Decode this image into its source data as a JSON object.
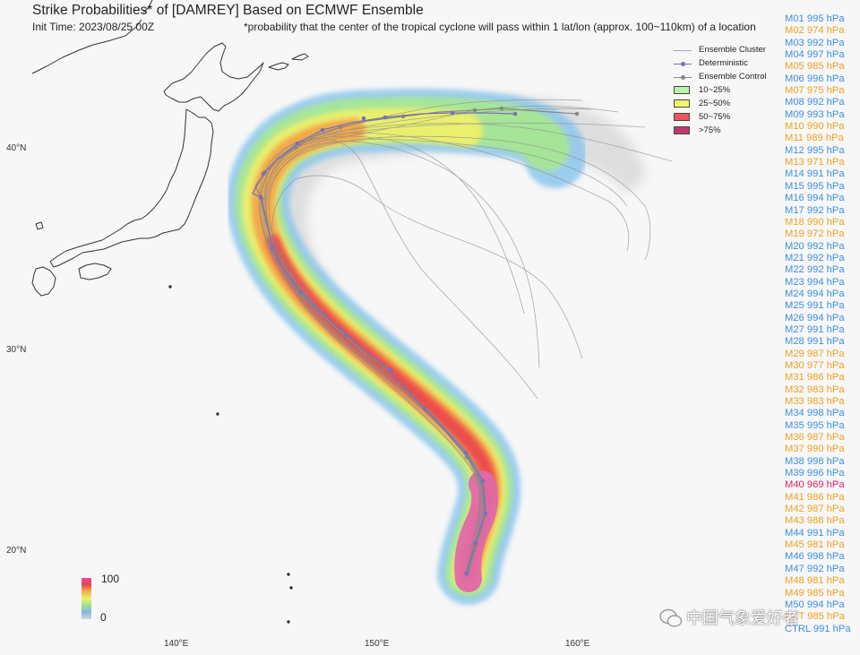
{
  "title": "Strike Probabilities* of [DAMREY] Based on ECMWF Ensemble",
  "init_time": "Init Time: 2023/08/25 00Z",
  "footnote": "*probability that the center of the tropical cyclone will pass within 1 lat/lon (approx. 100~110km) of a location",
  "lat_labels": [
    "40°N",
    "30°N",
    "20°N"
  ],
  "lon_labels": [
    "140°E",
    "150°E",
    "160°E"
  ],
  "legend": {
    "ensemble_cluster": "Ensemble Cluster",
    "deterministic": "Deterministic",
    "ensemble_control": "Ensemble Control",
    "bands": [
      {
        "label": "10~25%",
        "color": "#b9f4a8"
      },
      {
        "label": "25~50%",
        "color": "#f6f56a"
      },
      {
        "label": "50~75%",
        "color": "#f0555a"
      },
      {
        "label": ">75%",
        "color": "#c0396e"
      }
    ]
  },
  "colorbar": {
    "max": "100",
    "min": "0"
  },
  "members": [
    {
      "text": "M01 995 hPa",
      "color": "#3d8fe0"
    },
    {
      "text": "M02 974 hPa",
      "color": "#f0a020"
    },
    {
      "text": "M03 992 hPa",
      "color": "#3d8fe0"
    },
    {
      "text": "M04 997 hPa",
      "color": "#3d8fe0"
    },
    {
      "text": "M05 985 hPa",
      "color": "#f0a020"
    },
    {
      "text": "M06 996 hPa",
      "color": "#3d8fe0"
    },
    {
      "text": "M07 975 hPa",
      "color": "#f0a020"
    },
    {
      "text": "M08 992 hPa",
      "color": "#3d8fe0"
    },
    {
      "text": "M09 993 hPa",
      "color": "#3d8fe0"
    },
    {
      "text": "M10 990 hPa",
      "color": "#f0a020"
    },
    {
      "text": "M11 989 hPa",
      "color": "#f0a020"
    },
    {
      "text": "M12 995 hPa",
      "color": "#3d8fe0"
    },
    {
      "text": "M13 971 hPa",
      "color": "#f0a020"
    },
    {
      "text": "M14 991 hPa",
      "color": "#3d8fe0"
    },
    {
      "text": "M15 995 hPa",
      "color": "#3d8fe0"
    },
    {
      "text": "M16 994 hPa",
      "color": "#3d8fe0"
    },
    {
      "text": "M17 992 hPa",
      "color": "#3d8fe0"
    },
    {
      "text": "M18 990 hPa",
      "color": "#f0a020"
    },
    {
      "text": "M19 972 hPa",
      "color": "#f0a020"
    },
    {
      "text": "M20 992 hPa",
      "color": "#3d8fe0"
    },
    {
      "text": "M21 992 hPa",
      "color": "#3d8fe0"
    },
    {
      "text": "M22 992 hPa",
      "color": "#3d8fe0"
    },
    {
      "text": "M23 994 hPa",
      "color": "#3d8fe0"
    },
    {
      "text": "M24 994 hPa",
      "color": "#3d8fe0"
    },
    {
      "text": "M25 991 hPa",
      "color": "#3d8fe0"
    },
    {
      "text": "M26 994 hPa",
      "color": "#3d8fe0"
    },
    {
      "text": "M27 991 hPa",
      "color": "#3d8fe0"
    },
    {
      "text": "M28 991 hPa",
      "color": "#3d8fe0"
    },
    {
      "text": "M29 987 hPa",
      "color": "#f0a020"
    },
    {
      "text": "M30 977 hPa",
      "color": "#f0a020"
    },
    {
      "text": "M31 986 hPa",
      "color": "#f0a020"
    },
    {
      "text": "M32 983 hPa",
      "color": "#f0a020"
    },
    {
      "text": "M33 983 hPa",
      "color": "#f0a020"
    },
    {
      "text": "M34 998 hPa",
      "color": "#3d8fe0"
    },
    {
      "text": "M35 995 hPa",
      "color": "#3d8fe0"
    },
    {
      "text": "M36 987 hPa",
      "color": "#f0a020"
    },
    {
      "text": "M37 990 hPa",
      "color": "#f0a020"
    },
    {
      "text": "M38 998 hPa",
      "color": "#3d8fe0"
    },
    {
      "text": "M39 996 hPa",
      "color": "#3d8fe0"
    },
    {
      "text": "M40 969 hPa",
      "color": "#e0206e"
    },
    {
      "text": "M41 986 hPa",
      "color": "#f0a020"
    },
    {
      "text": "M42 987 hPa",
      "color": "#f0a020"
    },
    {
      "text": "M43 988 hPa",
      "color": "#f0a020"
    },
    {
      "text": "M44 991 hPa",
      "color": "#3d8fe0"
    },
    {
      "text": "M45 981 hPa",
      "color": "#f0a020"
    },
    {
      "text": "M46 998 hPa",
      "color": "#3d8fe0"
    },
    {
      "text": "M47 992 hPa",
      "color": "#3d8fe0"
    },
    {
      "text": "M48 981 hPa",
      "color": "#f0a020"
    },
    {
      "text": "M49 985 hPa",
      "color": "#f0a020"
    },
    {
      "text": "M50 994 hPa",
      "color": "#3d8fe0"
    },
    {
      "text": "DET 985 hPa",
      "color": "#f0a020"
    },
    {
      "text": "CTRL 991 hPa",
      "color": "#3d8fe0"
    }
  ],
  "watermark": "中国气象爱好者"
}
